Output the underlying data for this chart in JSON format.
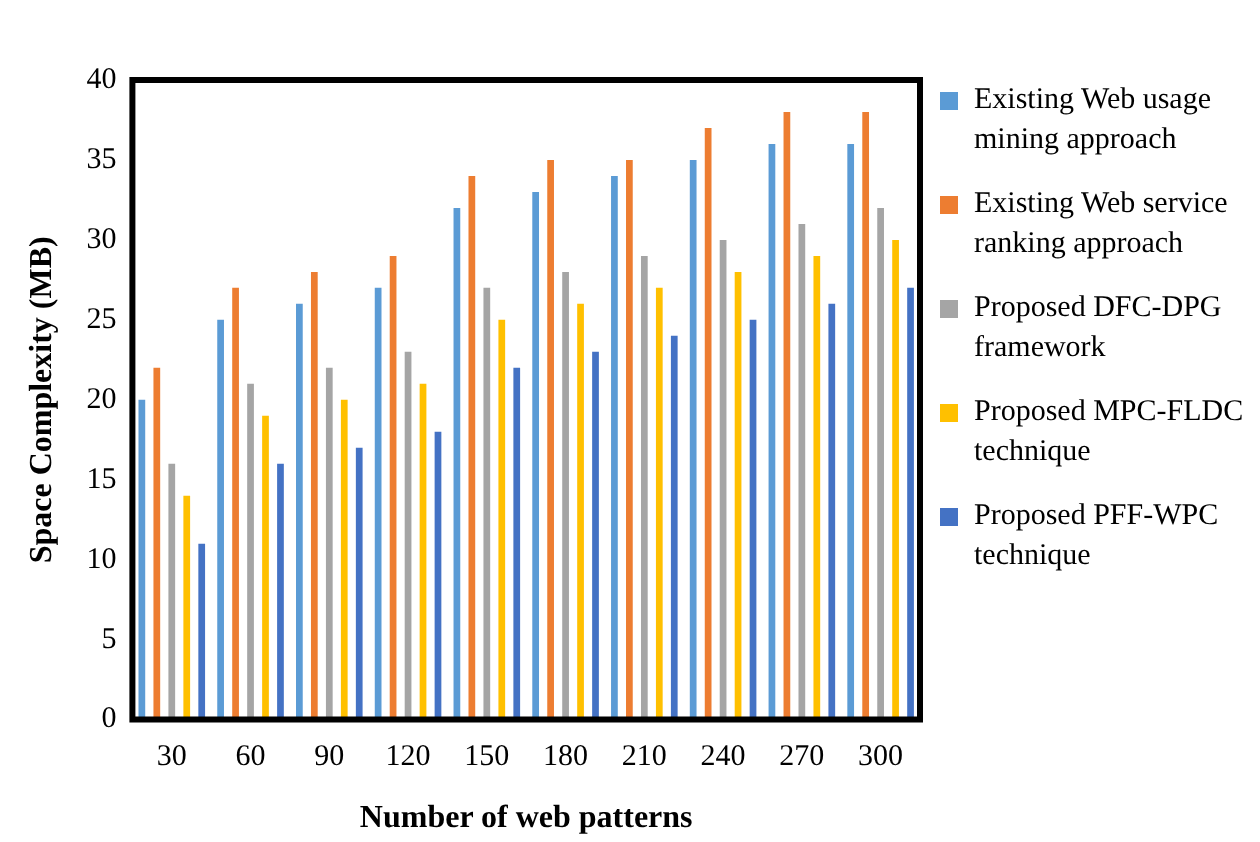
{
  "chart_data": {
    "type": "bar",
    "xlabel": "Number of web patterns",
    "ylabel": "Space Complexity (MB)",
    "categories": [
      "30",
      "60",
      "90",
      "120",
      "150",
      "180",
      "210",
      "240",
      "270",
      "300"
    ],
    "series": [
      {
        "name": "Existing Web usage mining approach",
        "color": "#5b9bd5",
        "values": [
          20,
          25,
          26,
          27,
          32,
          33,
          34,
          35,
          36,
          36
        ]
      },
      {
        "name": "Existing Web service ranking approach",
        "color": "#ed7d31",
        "values": [
          22,
          27,
          28,
          29,
          34,
          35,
          35,
          37,
          38,
          38
        ]
      },
      {
        "name": "Proposed DFC-DPG framework",
        "color": "#a5a5a5",
        "values": [
          16,
          21,
          22,
          23,
          27,
          28,
          29,
          30,
          31,
          32
        ]
      },
      {
        "name": "Proposed MPC-FLDC technique",
        "color": "#ffc000",
        "values": [
          14,
          19,
          20,
          21,
          25,
          26,
          27,
          28,
          29,
          30
        ]
      },
      {
        "name": "Proposed PFF-WPC technique",
        "color": "#4472c4",
        "values": [
          11,
          16,
          17,
          18,
          22,
          23,
          24,
          25,
          26,
          27
        ]
      }
    ],
    "ylim": [
      0,
      40
    ],
    "yticks": [
      0,
      5,
      10,
      15,
      20,
      25,
      30,
      35,
      40
    ],
    "grid": false,
    "legend": "right"
  }
}
